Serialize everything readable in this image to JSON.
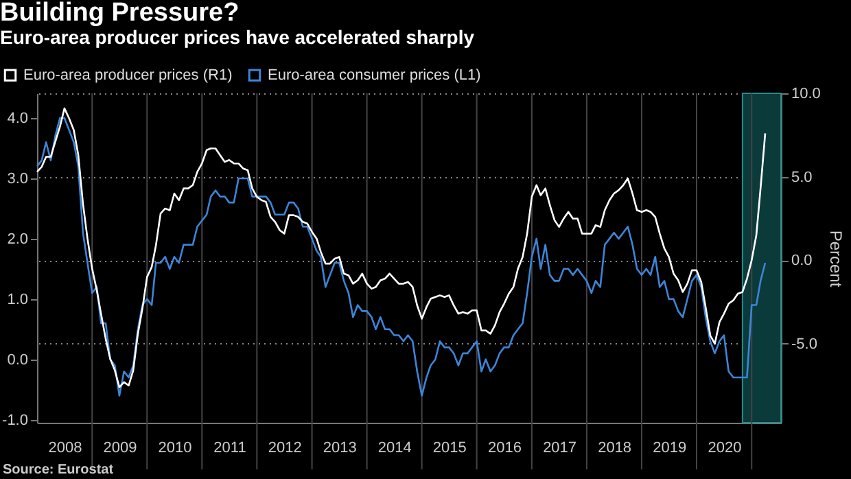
{
  "chart_data": {
    "type": "line",
    "title": "Building Pressure?",
    "subtitle": "Euro-area producer prices have accelerated sharply",
    "y2label": "Percent",
    "annotations": [
      "Source: Eurostat"
    ],
    "x": [
      "2008-01",
      "2008-02",
      "2008-03",
      "2008-04",
      "2008-05",
      "2008-06",
      "2008-07",
      "2008-08",
      "2008-09",
      "2008-10",
      "2008-11",
      "2008-12",
      "2009-01",
      "2009-02",
      "2009-03",
      "2009-04",
      "2009-05",
      "2009-06",
      "2009-07",
      "2009-08",
      "2009-09",
      "2009-10",
      "2009-11",
      "2009-12",
      "2010-01",
      "2010-02",
      "2010-03",
      "2010-04",
      "2010-05",
      "2010-06",
      "2010-07",
      "2010-08",
      "2010-09",
      "2010-10",
      "2010-11",
      "2010-12",
      "2011-01",
      "2011-02",
      "2011-03",
      "2011-04",
      "2011-05",
      "2011-06",
      "2011-07",
      "2011-08",
      "2011-09",
      "2011-10",
      "2011-11",
      "2011-12",
      "2012-01",
      "2012-02",
      "2012-03",
      "2012-04",
      "2012-05",
      "2012-06",
      "2012-07",
      "2012-08",
      "2012-09",
      "2012-10",
      "2012-11",
      "2012-12",
      "2013-01",
      "2013-02",
      "2013-03",
      "2013-04",
      "2013-05",
      "2013-06",
      "2013-07",
      "2013-08",
      "2013-09",
      "2013-10",
      "2013-11",
      "2013-12",
      "2014-01",
      "2014-02",
      "2014-03",
      "2014-04",
      "2014-05",
      "2014-06",
      "2014-07",
      "2014-08",
      "2014-09",
      "2014-10",
      "2014-11",
      "2014-12",
      "2015-01",
      "2015-02",
      "2015-03",
      "2015-04",
      "2015-05",
      "2015-06",
      "2015-07",
      "2015-08",
      "2015-09",
      "2015-10",
      "2015-11",
      "2015-12",
      "2016-01",
      "2016-02",
      "2016-03",
      "2016-04",
      "2016-05",
      "2016-06",
      "2016-07",
      "2016-08",
      "2016-09",
      "2016-10",
      "2016-11",
      "2016-12",
      "2017-01",
      "2017-02",
      "2017-03",
      "2017-04",
      "2017-05",
      "2017-06",
      "2017-07",
      "2017-08",
      "2017-09",
      "2017-10",
      "2017-11",
      "2017-12",
      "2018-01",
      "2018-02",
      "2018-03",
      "2018-04",
      "2018-05",
      "2018-06",
      "2018-07",
      "2018-08",
      "2018-09",
      "2018-10",
      "2018-11",
      "2018-12",
      "2019-01",
      "2019-02",
      "2019-03",
      "2019-04",
      "2019-05",
      "2019-06",
      "2019-07",
      "2019-08",
      "2019-09",
      "2019-10",
      "2019-11",
      "2019-12",
      "2020-01",
      "2020-02",
      "2020-03",
      "2020-04",
      "2020-05",
      "2020-06",
      "2020-07",
      "2020-08",
      "2020-09",
      "2020-10",
      "2020-11",
      "2020-12",
      "2021-01",
      "2021-02",
      "2021-03",
      "2021-04"
    ],
    "series": [
      {
        "name": "Euro-area producer prices (R1)",
        "color": "#ffffff",
        "axis": "y2",
        "values": [
          5.3,
          5.6,
          6.2,
          6.2,
          7.1,
          8.0,
          9.1,
          8.5,
          7.8,
          6.3,
          3.4,
          1.3,
          -0.5,
          -1.8,
          -3.2,
          -4.7,
          -5.9,
          -6.6,
          -7.6,
          -7.3,
          -7.5,
          -6.6,
          -4.4,
          -2.9,
          -1.0,
          -0.4,
          0.9,
          2.8,
          3.1,
          3.0,
          4.0,
          3.6,
          4.3,
          4.3,
          4.5,
          5.3,
          5.8,
          6.6,
          6.7,
          6.7,
          6.3,
          5.9,
          6.0,
          5.8,
          5.8,
          5.5,
          5.4,
          4.3,
          3.8,
          3.6,
          3.5,
          2.6,
          2.3,
          1.8,
          1.6,
          2.7,
          2.7,
          2.6,
          2.3,
          2.2,
          1.7,
          1.3,
          0.5,
          -0.2,
          -0.2,
          0.1,
          0.2,
          -0.8,
          -0.9,
          -1.4,
          -1.2,
          -0.8,
          -1.4,
          -1.7,
          -1.6,
          -1.2,
          -1.1,
          -0.8,
          -1.1,
          -1.4,
          -1.4,
          -1.3,
          -1.6,
          -2.7,
          -3.5,
          -2.8,
          -2.3,
          -2.2,
          -2.1,
          -2.2,
          -2.1,
          -2.7,
          -3.2,
          -3.1,
          -3.2,
          -3.0,
          -3.0,
          -4.2,
          -4.2,
          -4.4,
          -3.9,
          -3.1,
          -2.6,
          -2.0,
          -1.6,
          -0.5,
          0.2,
          1.6,
          3.8,
          4.5,
          3.9,
          4.3,
          3.3,
          2.4,
          2.0,
          2.5,
          2.9,
          2.5,
          2.5,
          1.6,
          1.6,
          1.6,
          2.1,
          2.0,
          3.0,
          3.6,
          4.0,
          4.2,
          4.5,
          4.9,
          4.0,
          3.0,
          2.9,
          3.0,
          2.9,
          2.6,
          1.6,
          0.7,
          0.2,
          -0.8,
          -1.2,
          -1.9,
          -1.4,
          -0.6,
          -0.6,
          -1.3,
          -2.8,
          -4.5,
          -5.0,
          -3.7,
          -3.2,
          -2.6,
          -2.4,
          -2.0,
          -1.9,
          -1.1,
          0.0,
          1.5,
          4.3,
          7.6
        ]
      },
      {
        "name": "Euro-area consumer prices  (L1)",
        "color": "#3d85d8",
        "values": [
          3.2,
          3.3,
          3.6,
          3.3,
          3.7,
          4.0,
          4.0,
          3.8,
          3.6,
          3.2,
          2.1,
          1.6,
          1.1,
          1.2,
          0.6,
          0.6,
          0.0,
          -0.1,
          -0.6,
          -0.2,
          -0.3,
          -0.1,
          0.5,
          0.9,
          1.0,
          0.9,
          1.6,
          1.6,
          1.7,
          1.5,
          1.7,
          1.6,
          1.9,
          1.9,
          1.9,
          2.2,
          2.3,
          2.4,
          2.7,
          2.8,
          2.7,
          2.7,
          2.6,
          2.6,
          3.0,
          3.0,
          3.0,
          2.7,
          2.7,
          2.7,
          2.7,
          2.6,
          2.4,
          2.4,
          2.4,
          2.6,
          2.6,
          2.5,
          2.2,
          2.2,
          2.0,
          1.8,
          1.7,
          1.2,
          1.4,
          1.6,
          1.6,
          1.3,
          1.1,
          0.7,
          0.9,
          0.8,
          0.8,
          0.7,
          0.5,
          0.7,
          0.5,
          0.5,
          0.4,
          0.4,
          0.3,
          0.4,
          0.3,
          -0.2,
          -0.6,
          -0.3,
          -0.1,
          0.0,
          0.3,
          0.2,
          0.2,
          0.1,
          -0.1,
          0.1,
          0.1,
          0.2,
          0.3,
          -0.2,
          0.0,
          -0.2,
          -0.1,
          0.1,
          0.2,
          0.2,
          0.4,
          0.5,
          0.6,
          1.1,
          1.7,
          2.0,
          1.5,
          1.9,
          1.4,
          1.3,
          1.3,
          1.5,
          1.5,
          1.4,
          1.5,
          1.4,
          1.3,
          1.1,
          1.3,
          1.2,
          1.9,
          2.0,
          2.1,
          2.0,
          2.1,
          2.2,
          1.9,
          1.5,
          1.4,
          1.5,
          1.4,
          1.7,
          1.2,
          1.3,
          1.0,
          1.0,
          0.8,
          0.7,
          1.0,
          1.3,
          1.4,
          1.2,
          0.7,
          0.3,
          0.1,
          0.3,
          0.4,
          -0.2,
          -0.3,
          -0.3,
          -0.3,
          -0.3,
          0.9,
          0.9,
          1.3,
          1.6
        ]
      }
    ],
    "xlim": [
      "2008-01",
      "2021-07-15"
    ],
    "xticks": [
      {
        "value": "2008-07",
        "label": "2008"
      },
      {
        "value": "2009",
        "label": null
      },
      {
        "value": "2009-07",
        "label": "2009"
      },
      {
        "value": "2010",
        "label": null
      },
      {
        "value": "2010-07",
        "label": "2010"
      },
      {
        "value": "2011",
        "label": null
      },
      {
        "value": "2011-07",
        "label": "2011"
      },
      {
        "value": "2012",
        "label": null
      },
      {
        "value": "2012-07",
        "label": "2012"
      },
      {
        "value": "2013",
        "label": null
      },
      {
        "value": "2013-07",
        "label": "2013"
      },
      {
        "value": "2014",
        "label": null
      },
      {
        "value": "2014-07",
        "label": "2014"
      },
      {
        "value": "2015",
        "label": null
      },
      {
        "value": "2015-07",
        "label": "2015"
      },
      {
        "value": "2016",
        "label": null
      },
      {
        "value": "2016-07",
        "label": "2016"
      },
      {
        "value": "2017",
        "label": null
      },
      {
        "value": "2017-07",
        "label": "2017"
      },
      {
        "value": "2018",
        "label": null
      },
      {
        "value": "2018-07",
        "label": "2018"
      },
      {
        "value": "2019",
        "label": null
      },
      {
        "value": "2019-07",
        "label": "2019"
      },
      {
        "value": "2020",
        "label": null
      },
      {
        "value": "2020-07",
        "label": "2020"
      },
      {
        "value": "2021",
        "label": null
      }
    ],
    "ylim": [
      -1.05,
      4.41
    ],
    "yticks": [
      {
        "value": -1,
        "label": "-1.0"
      },
      {
        "value": 0,
        "label": "0.0"
      },
      {
        "value": 1,
        "label": "1.0"
      },
      {
        "value": 2,
        "label": "2.0"
      },
      {
        "value": 3,
        "label": "3.0"
      },
      {
        "value": 4,
        "label": "4.0"
      }
    ],
    "y2lim": [
      -9.73,
      10.0
    ],
    "y2ticks": [
      {
        "value": -5,
        "label": "-5.0"
      },
      {
        "value": 0,
        "label": "0.0"
      },
      {
        "value": 5,
        "label": "5.0"
      },
      {
        "value": 10,
        "label": "10.0"
      }
    ],
    "bands": [
      {
        "axis": "x",
        "from": "2020-11",
        "to": "2021-07-15",
        "color": "#0b3a3b"
      }
    ],
    "grid": true,
    "legend": "top left"
  }
}
